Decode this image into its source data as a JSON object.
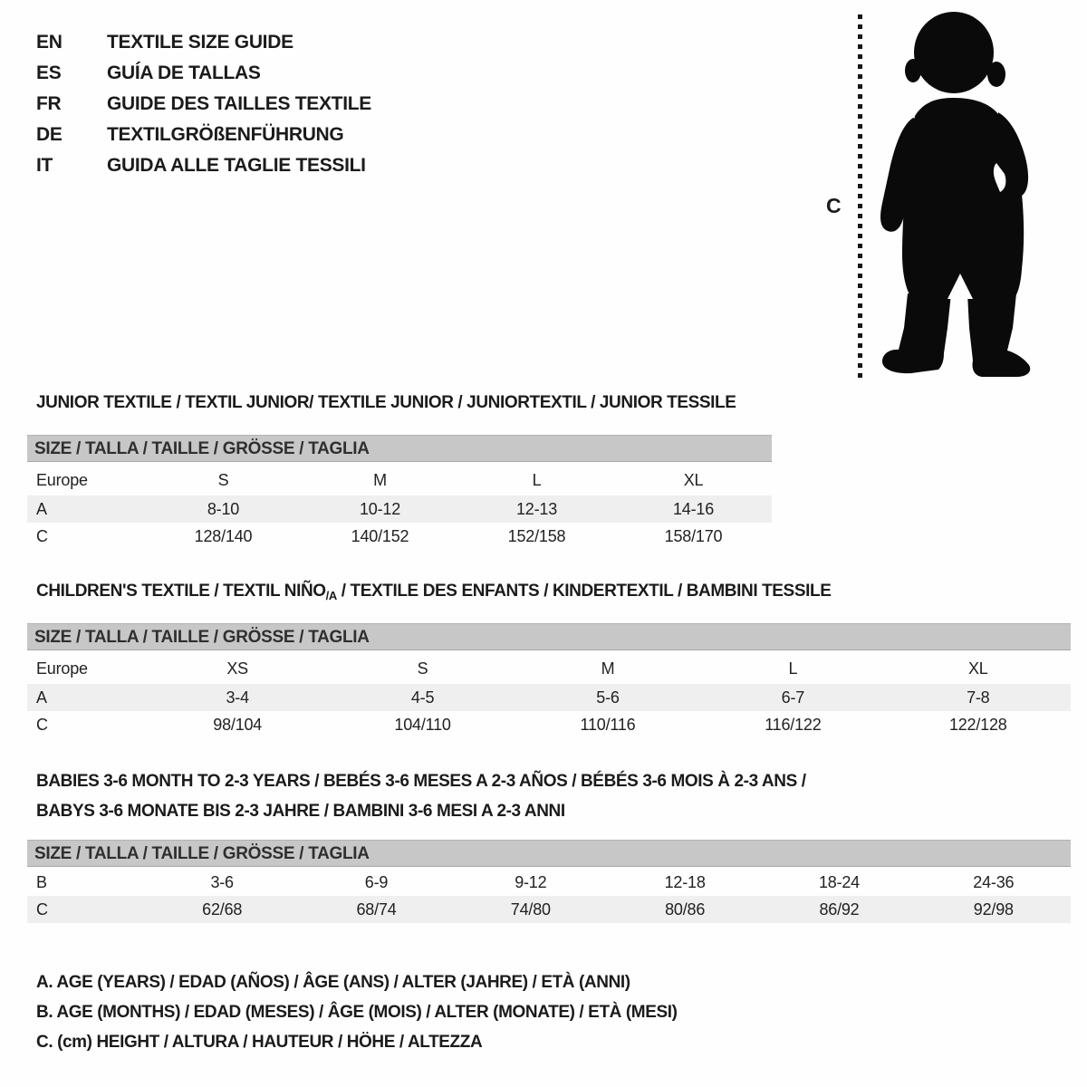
{
  "languages": [
    {
      "code": "EN",
      "title": "TEXTILE SIZE GUIDE"
    },
    {
      "code": "ES",
      "title": "GUÍA DE TALLAS"
    },
    {
      "code": "FR",
      "title": "GUIDE DES TAILLES TEXTILE"
    },
    {
      "code": "DE",
      "title": "TEXTILGRÖßENFÜHRUNG"
    },
    {
      "code": "IT",
      "title": "GUIDA ALLE TAGLIE TESSILI"
    }
  ],
  "figure": {
    "height_label": "C",
    "image": "toddler-silhouette"
  },
  "sections": {
    "junior": {
      "heading": "JUNIOR TEXTILE / TEXTIL JUNIOR/ TEXTILE JUNIOR / JUNIORTEXTIL / JUNIOR TESSILE",
      "size_bar": "SIZE / TALLA / TAILLE / GRÖSSE / TAGLIA",
      "header_label": "Europe",
      "header_cells": [
        "S",
        "M",
        "L",
        "XL"
      ],
      "rows": [
        {
          "label": "A",
          "shaded": true,
          "cells": [
            "8-10",
            "10-12",
            "12-13",
            "14-16"
          ]
        },
        {
          "label": "C",
          "shaded": false,
          "cells": [
            "128/140",
            "140/152",
            "152/158",
            "158/170"
          ]
        }
      ]
    },
    "children": {
      "heading_prefix": "CHILDREN'S TEXTILE / TEXTIL NIÑO",
      "heading_sub": "/A",
      "heading_suffix": " / TEXTILE DES ENFANTS / KINDERTEXTIL / BAMBINI TESSILE",
      "size_bar": "SIZE / TALLA / TAILLE / GRÖSSE / TAGLIA",
      "header_label": "Europe",
      "header_cells": [
        "XS",
        "S",
        "M",
        "L",
        "XL"
      ],
      "rows": [
        {
          "label": "A",
          "shaded": true,
          "cells": [
            "3-4",
            "4-5",
            "5-6",
            "6-7",
            "7-8"
          ]
        },
        {
          "label": "C",
          "shaded": false,
          "cells": [
            "98/104",
            "104/110",
            "110/116",
            "116/122",
            "122/128"
          ]
        }
      ]
    },
    "babies": {
      "heading_line1": "BABIES 3-6 MONTH TO 2-3 YEARS / BEBÉS 3-6 MESES A 2-3 AÑOS / BÉBÉS 3-6 MOIS À 2-3 ANS /",
      "heading_line2": "BABYS 3-6 MONATE BIS 2-3 JAHRE / BAMBINI 3-6 MESI A 2-3 ANNI",
      "size_bar": "SIZE / TALLA / TAILLE / GRÖSSE / TAGLIA",
      "rows": [
        {
          "label": "B",
          "shaded": false,
          "cells": [
            "3-6",
            "6-9",
            "9-12",
            "12-18",
            "18-24",
            "24-36"
          ]
        },
        {
          "label": "C",
          "shaded": true,
          "cells": [
            "62/68",
            "68/74",
            "74/80",
            "80/86",
            "86/92",
            "92/98"
          ]
        }
      ]
    }
  },
  "legend": {
    "line_a": "A. AGE (YEARS) / EDAD (AÑOS) / ÂGE (ANS) / ALTER (JAHRE) / ETÀ (ANNI)",
    "line_b": "B. AGE (MONTHS) / EDAD (MESES) / ÂGE (MOIS) / ALTER (MONATE) / ETÀ (MESI)",
    "line_c": "C. (cm) HEIGHT / ALTURA / HAUTEUR / HÖHE / ALTEZZA"
  },
  "colors": {
    "size_bar_gray": "#c7c7c7",
    "shaded_row_gray": "#efefef",
    "ink": "#1b1b1b",
    "silhouette": "#0a0a0a"
  }
}
